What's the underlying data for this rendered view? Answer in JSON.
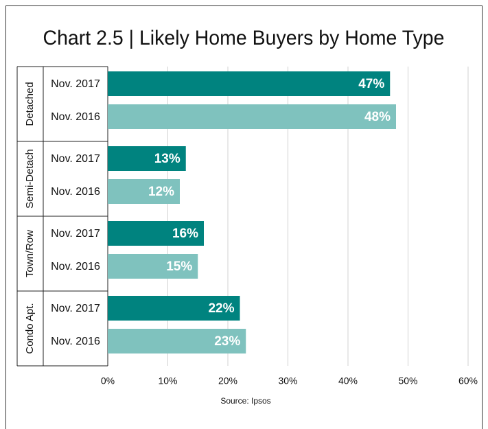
{
  "chart_data": {
    "type": "bar",
    "title": "Chart 2.5 | Likely Home Buyers by Home Type",
    "categories": [
      "Detached",
      "Semi-Detach",
      "Town/Row",
      "Condo Apt."
    ],
    "series": [
      {
        "name": "Nov. 2017",
        "color": "#00837f",
        "values": [
          47,
          13,
          16,
          22
        ],
        "value_labels": [
          "47%",
          "13%",
          "16%",
          "22%"
        ]
      },
      {
        "name": "Nov. 2016",
        "color": "#7fc2be",
        "values": [
          48,
          12,
          15,
          23
        ],
        "value_labels": [
          "48%",
          "12%",
          "15%",
          "23%"
        ]
      }
    ],
    "xlim": [
      0,
      60
    ],
    "xticks": [
      {
        "value": 0,
        "label": "0%"
      },
      {
        "value": 10,
        "label": "10%"
      },
      {
        "value": 20,
        "label": "20%"
      },
      {
        "value": 30,
        "label": "30%"
      },
      {
        "value": 40,
        "label": "40%"
      },
      {
        "value": 50,
        "label": "50%"
      },
      {
        "value": 60,
        "label": "60%"
      }
    ],
    "grid": true,
    "source": "Source: Ipsos"
  }
}
